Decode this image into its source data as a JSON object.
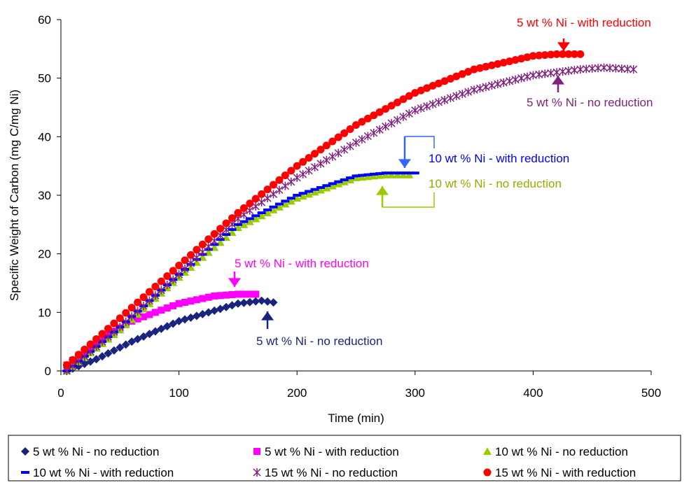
{
  "chart_data": {
    "type": "scatter",
    "title": "",
    "xlabel": "Time (min)",
    "ylabel": "Specific Weight of Carbon (mg C/mg Ni)",
    "xlim": [
      0,
      500
    ],
    "ylim": [
      0,
      60
    ],
    "x_ticks": [
      "0",
      "100",
      "200",
      "300",
      "400",
      "500"
    ],
    "y_ticks": [
      "0",
      "10",
      "20",
      "30",
      "40",
      "50",
      "60"
    ],
    "grid": false,
    "legend_position": "bottom",
    "series": [
      {
        "name": "5 wt % Ni - no reduction",
        "marker": "diamond",
        "color": "#1a237e",
        "x_start": 5,
        "x_end": 180,
        "step": 5,
        "x": [
          5,
          30,
          60,
          100,
          150,
          170,
          180
        ],
        "y": [
          0,
          2,
          5,
          8.5,
          11.5,
          12,
          11.7
        ]
      },
      {
        "name": "5 wt % Ni - with reduction",
        "marker": "square",
        "color": "#ff00ff",
        "x_start": 5,
        "x_end": 165,
        "step": 5,
        "x": [
          5,
          30,
          60,
          100,
          130,
          150,
          165
        ],
        "y": [
          1,
          5,
          8.5,
          11.5,
          12.8,
          13.1,
          13.1
        ]
      },
      {
        "name": "10 wt % Ni - no reduction",
        "marker": "triangle",
        "color": "#99cc00",
        "x_start": 5,
        "x_end": 295,
        "step": 5,
        "x": [
          5,
          50,
          100,
          150,
          200,
          250,
          275,
          295
        ],
        "y": [
          0,
          7,
          16,
          24.5,
          29.5,
          33,
          33.5,
          33.5
        ]
      },
      {
        "name": "10 wt % Ni - with reduction",
        "marker": "dash",
        "color": "#0000ff",
        "x_start": 5,
        "x_end": 300,
        "step": 5,
        "x": [
          5,
          50,
          100,
          150,
          200,
          250,
          275,
          300
        ],
        "y": [
          0,
          7.5,
          16.5,
          25,
          30,
          33.3,
          33.8,
          33.8
        ]
      },
      {
        "name": "15 wt % Ni - no reduction",
        "marker": "star",
        "color": "#7f1f7f",
        "x_start": 5,
        "x_end": 485,
        "step": 5,
        "x": [
          5,
          50,
          100,
          150,
          200,
          250,
          300,
          350,
          400,
          440,
          460,
          485
        ],
        "y": [
          0,
          7.5,
          16.5,
          26,
          33,
          39,
          44.5,
          48,
          50.5,
          51.5,
          51.8,
          51.5
        ]
      },
      {
        "name": "15 wt % Ni - with reduction",
        "marker": "circle",
        "color": "#ff0000",
        "x_start": 5,
        "x_end": 440,
        "step": 5,
        "x": [
          5,
          50,
          100,
          150,
          200,
          250,
          300,
          350,
          400,
          420,
          440
        ],
        "y": [
          1,
          9,
          18,
          27,
          35,
          42,
          47.5,
          51.5,
          53.8,
          54.1,
          54.1
        ]
      }
    ],
    "annotations": [
      {
        "text": "5 wt % Ni - with reduction",
        "color": "#ff0000",
        "arrow_color": "#ff0000"
      },
      {
        "text": "5 wt % Ni - no reduction",
        "color": "#7f1f7f",
        "arrow_color": "#7f1f7f"
      },
      {
        "text": "10 wt % Ni - with reduction",
        "color": "#0000ff",
        "arrow_color": "#3366ff"
      },
      {
        "text": "10 wt % Ni - no reduction",
        "color": "#99aa00",
        "arrow_color": "#99cc00"
      },
      {
        "text": "5 wt % Ni - with reduction",
        "color": "#ff00ff",
        "arrow_color": "#ff00ff"
      },
      {
        "text": "5 wt % Ni - no reduction",
        "color": "#1a237e",
        "arrow_color": "#1a237e"
      }
    ]
  }
}
